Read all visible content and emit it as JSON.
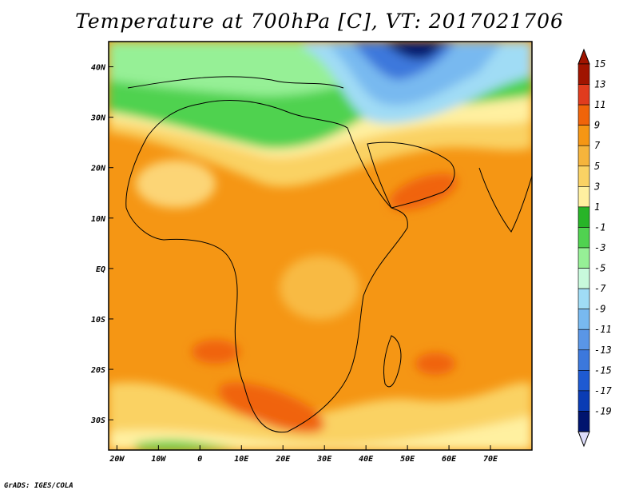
{
  "title": "Temperature at 700hPa [C], VT: 2017021706",
  "credit": "GrADS: IGES/COLA",
  "map": {
    "lon_range": [
      -22,
      80
    ],
    "lat_range": [
      -36,
      45
    ],
    "lat_ticks": [
      {
        "value": 40,
        "label": "40N"
      },
      {
        "value": 30,
        "label": "30N"
      },
      {
        "value": 20,
        "label": "20N"
      },
      {
        "value": 10,
        "label": "10N"
      },
      {
        "value": 0,
        "label": "EQ"
      },
      {
        "value": -10,
        "label": "10S"
      },
      {
        "value": -20,
        "label": "20S"
      },
      {
        "value": -30,
        "label": "30S"
      }
    ],
    "lon_ticks": [
      {
        "value": -20,
        "label": "20W"
      },
      {
        "value": -10,
        "label": "10W"
      },
      {
        "value": 0,
        "label": "0"
      },
      {
        "value": 10,
        "label": "10E"
      },
      {
        "value": 20,
        "label": "20E"
      },
      {
        "value": 30,
        "label": "30E"
      },
      {
        "value": 40,
        "label": "40E"
      },
      {
        "value": 50,
        "label": "50E"
      },
      {
        "value": 60,
        "label": "60E"
      },
      {
        "value": 70,
        "label": "70E"
      }
    ]
  },
  "colorbar": {
    "levels": [
      {
        "label": "15",
        "color": "#a01400"
      },
      {
        "label": "13",
        "color": "#e03c1e"
      },
      {
        "label": "11",
        "color": "#f0640a"
      },
      {
        "label": "9",
        "color": "#f59614"
      },
      {
        "label": "7",
        "color": "#f5b43c"
      },
      {
        "label": "5",
        "color": "#fad264"
      },
      {
        "label": "3",
        "color": "#fff0a0"
      },
      {
        "label": "1",
        "color": "#28b428"
      },
      {
        "label": "-1",
        "color": "#50d250"
      },
      {
        "label": "-3",
        "color": "#96f096"
      },
      {
        "label": "-5",
        "color": "#c8fadc"
      },
      {
        "label": "-7",
        "color": "#a0dcf5"
      },
      {
        "label": "-9",
        "color": "#78b9f0"
      },
      {
        "label": "-11",
        "color": "#5a96e6"
      },
      {
        "label": "-13",
        "color": "#3c78dc"
      },
      {
        "label": "-15",
        "color": "#1e5ad2"
      },
      {
        "label": "-17",
        "color": "#0a3cb4"
      },
      {
        "label": "-19",
        "color": "#00146e"
      }
    ],
    "below_color": "#dcdcfa"
  }
}
